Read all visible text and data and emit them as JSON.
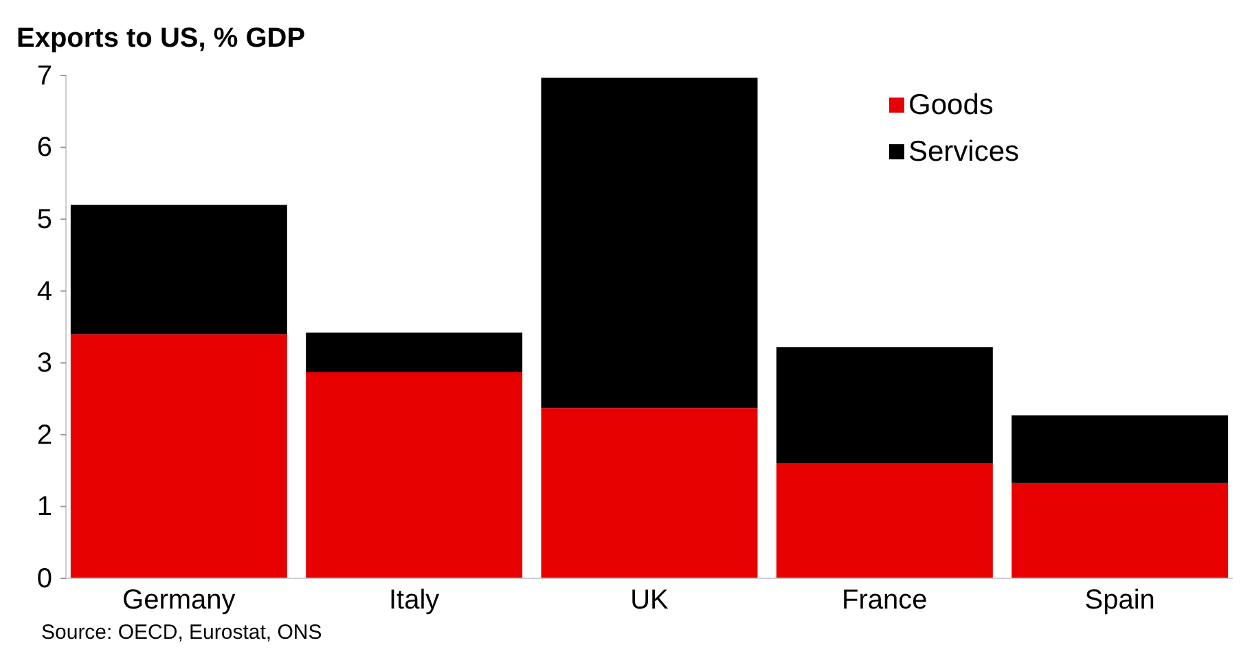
{
  "chart_data": {
    "type": "bar",
    "title": "Exports to US, % GDP",
    "stacked": true,
    "categories": [
      "Germany",
      "Italy",
      "UK",
      "France",
      "Spain"
    ],
    "series": [
      {
        "name": "Goods",
        "color": "#e60000",
        "values": [
          3.4,
          2.87,
          2.37,
          1.6,
          1.33
        ]
      },
      {
        "name": "Services",
        "color": "#000000",
        "values": [
          1.8,
          0.55,
          4.6,
          1.62,
          0.94
        ]
      }
    ],
    "ylim": [
      0,
      7
    ],
    "yticks": [
      0,
      1,
      2,
      3,
      4,
      5,
      6,
      7
    ],
    "legend": "top right",
    "grid": false,
    "annotations": [
      "Source: OECD, Eurostat, ONS"
    ]
  }
}
